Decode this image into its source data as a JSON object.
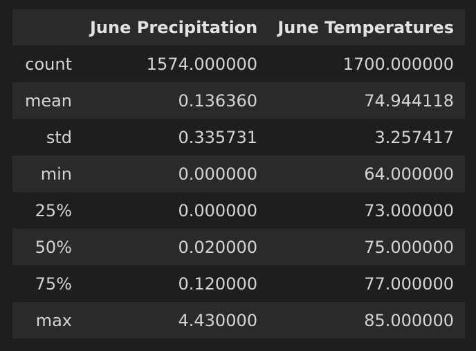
{
  "table": {
    "columns": [
      "",
      "June Precipitation",
      "June Temperatures"
    ],
    "rows": [
      {
        "index": "count",
        "values": [
          "1574.000000",
          "1700.000000"
        ]
      },
      {
        "index": "mean",
        "values": [
          "0.136360",
          "74.944118"
        ]
      },
      {
        "index": "std",
        "values": [
          "0.335731",
          "3.257417"
        ]
      },
      {
        "index": "min",
        "values": [
          "0.000000",
          "64.000000"
        ]
      },
      {
        "index": "25%",
        "values": [
          "0.000000",
          "73.000000"
        ]
      },
      {
        "index": "50%",
        "values": [
          "0.020000",
          "75.000000"
        ]
      },
      {
        "index": "75%",
        "values": [
          "0.120000",
          "77.000000"
        ]
      },
      {
        "index": "max",
        "values": [
          "4.430000",
          "85.000000"
        ]
      }
    ]
  },
  "colors": {
    "background": "#1e1e1e",
    "row_alt": "#2a2a2a",
    "text": "#d4d4d4"
  }
}
